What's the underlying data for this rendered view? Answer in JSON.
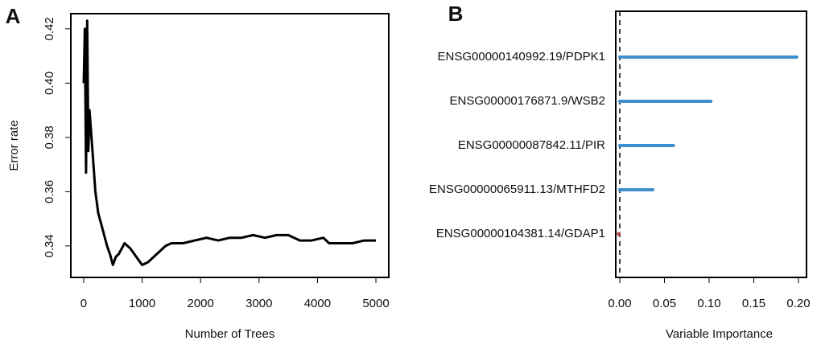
{
  "chart_data": [
    {
      "type": "line",
      "panel_label": "A",
      "x_label": "Number of Trees",
      "y_label": "Error rate",
      "color": "#000000",
      "x": [
        0,
        20,
        40,
        60,
        80,
        100,
        150,
        200,
        250,
        300,
        350,
        400,
        450,
        500,
        550,
        600,
        700,
        800,
        900,
        1000,
        1100,
        1200,
        1300,
        1400,
        1500,
        1700,
        1900,
        2100,
        2300,
        2500,
        2700,
        2900,
        3100,
        3300,
        3500,
        3700,
        3900,
        4100,
        4200,
        4400,
        4600,
        4800,
        5000
      ],
      "values": [
        0.4,
        0.42,
        0.367,
        0.423,
        0.375,
        0.39,
        0.375,
        0.36,
        0.352,
        0.348,
        0.344,
        0.34,
        0.337,
        0.333,
        0.336,
        0.337,
        0.341,
        0.339,
        0.336,
        0.333,
        0.334,
        0.336,
        0.338,
        0.34,
        0.341,
        0.341,
        0.342,
        0.343,
        0.342,
        0.343,
        0.343,
        0.344,
        0.343,
        0.344,
        0.344,
        0.342,
        0.342,
        0.343,
        0.341,
        0.341,
        0.341,
        0.342,
        0.342
      ],
      "xlim": [
        -220,
        5220
      ],
      "xticks": [
        0,
        1000,
        2000,
        3000,
        4000,
        5000
      ],
      "ylim": [
        0.3284,
        0.4256
      ],
      "yticks": [
        0.34,
        0.36,
        0.38,
        {
          "value": 0.4,
          "label": "0.40"
        },
        0.42
      ]
    },
    {
      "type": "lollipop",
      "panel_label": "B",
      "x_label": "Variable Importance",
      "categories": [
        "ENSG00000140992.19/PDPK1",
        "ENSG00000176871.9/WSB2",
        "ENSG00000087842.11/PIR",
        "ENSG00000065911.13/MTHFD2",
        "ENSG00000104381.14/GDAP1"
      ],
      "values": [
        0.198,
        0.102,
        0.06,
        0.037,
        -0.001
      ],
      "colors": [
        "#3d8fce",
        "#3d8fce",
        "#3d8fce",
        "#3d8fce",
        "#b04a4a"
      ],
      "xlim": [
        -0.0045,
        0.209
      ],
      "xticks": [
        {
          "value": 0,
          "label": "0.00"
        },
        0.05,
        {
          "value": 0.1,
          "label": "0.10"
        },
        0.15,
        {
          "value": 0.2,
          "label": "0.20"
        }
      ],
      "reference_line": 0
    }
  ]
}
